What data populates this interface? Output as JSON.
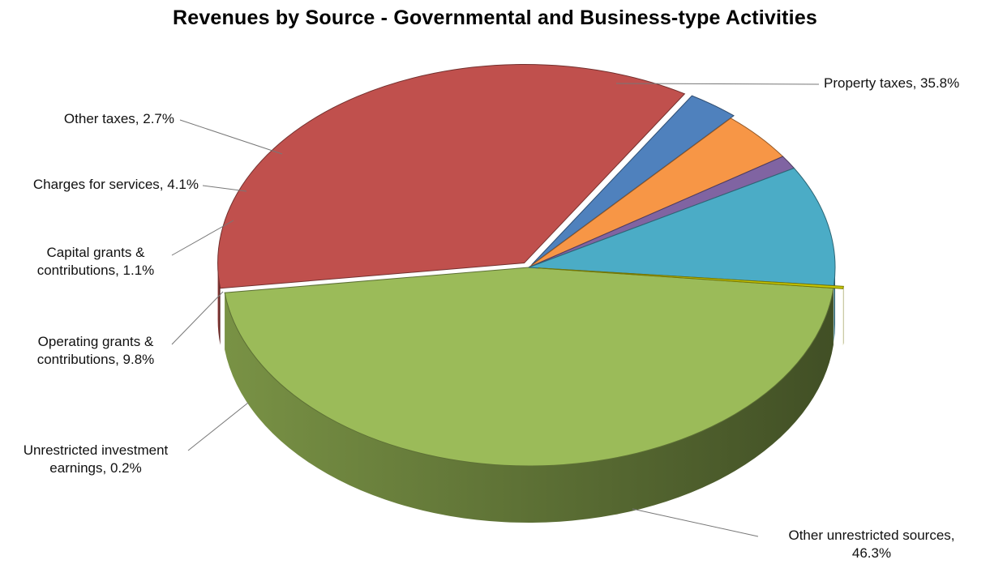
{
  "chart_data": {
    "type": "pie",
    "title": "Revenues by Source - Governmental and Business-type Activities",
    "slices": [
      {
        "name": "Other unrestricted sources",
        "value": 46.3,
        "label_lines": [
          "Other unrestricted sources,",
          "46.3%"
        ],
        "color": "#9bbb59"
      },
      {
        "name": "Property taxes",
        "value": 35.8,
        "label_lines": [
          "Property taxes, 35.8%"
        ],
        "color": "#c0504d"
      },
      {
        "name": "Other taxes",
        "value": 2.7,
        "label_lines": [
          "Other taxes, 2.7%"
        ],
        "color": "#4f81bd"
      },
      {
        "name": "Charges for services",
        "value": 4.1,
        "label_lines": [
          "Charges for services, 4.1%"
        ],
        "color": "#f79646"
      },
      {
        "name": "Capital grants & contributions",
        "value": 1.1,
        "label_lines": [
          "Capital grants &",
          "contributions, 1.1%"
        ],
        "color": "#8064a2"
      },
      {
        "name": "Operating grants & contributions",
        "value": 9.8,
        "label_lines": [
          "Operating grants &",
          "contributions, 9.8%"
        ],
        "color": "#4bacc6"
      },
      {
        "name": "Unrestricted investment earnings",
        "value": 0.2,
        "label_lines": [
          "Unrestricted investment",
          "earnings, 0.2%"
        ],
        "color": "#c8c800"
      }
    ],
    "style": "3d-pie",
    "legend": "none"
  }
}
